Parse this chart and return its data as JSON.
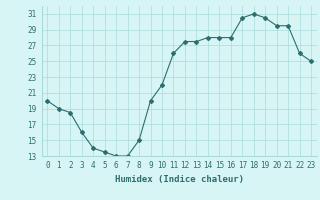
{
  "x": [
    0,
    1,
    2,
    3,
    4,
    5,
    6,
    7,
    8,
    9,
    10,
    11,
    12,
    13,
    14,
    15,
    16,
    17,
    18,
    19,
    20,
    21,
    22,
    23
  ],
  "y": [
    20,
    19,
    18.5,
    16,
    14,
    13.5,
    13,
    13,
    15,
    20,
    22,
    26,
    27.5,
    27.5,
    28,
    28,
    28,
    30.5,
    31,
    30.5,
    29.5,
    29.5,
    26,
    25
  ],
  "line_color": "#2d6e6e",
  "marker": "D",
  "marker_size": 2,
  "bg_color": "#d8f5f5",
  "grid_color": "#aadada",
  "xlabel": "Humidex (Indice chaleur)",
  "ylim": [
    13,
    32
  ],
  "xlim": [
    -0.5,
    23.5
  ],
  "yticks": [
    13,
    15,
    17,
    19,
    21,
    23,
    25,
    27,
    29,
    31
  ],
  "xticks": [
    0,
    1,
    2,
    3,
    4,
    5,
    6,
    7,
    8,
    9,
    10,
    11,
    12,
    13,
    14,
    15,
    16,
    17,
    18,
    19,
    20,
    21,
    22,
    23
  ],
  "tick_fontsize": 5.5,
  "xlabel_fontsize": 6.5
}
